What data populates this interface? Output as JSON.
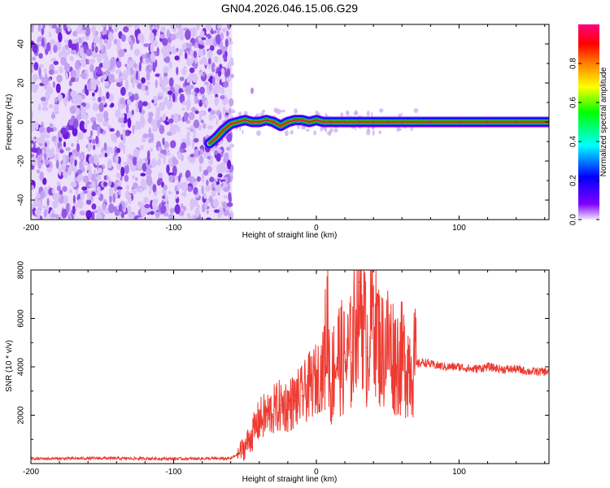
{
  "figure": {
    "title": "GN04.2026.046.15.06.G29"
  },
  "chart_data": [
    {
      "type": "heatmap",
      "title": "GN04.2026.046.15.06.G29",
      "xlabel": "Height of straight line (km)",
      "ylabel": "Frequency (Hz)",
      "xlim": [
        -200,
        163
      ],
      "ylim": [
        -50,
        50
      ],
      "xticks": [
        -200,
        -100,
        0,
        100
      ],
      "yticks": [
        -40,
        -20,
        0,
        20,
        40
      ],
      "noise_region_x": [
        -200,
        -59
      ],
      "signal_track": {
        "x": [
          -75,
          -70,
          -65,
          -60,
          -55,
          -50,
          -45,
          -40,
          -35,
          -30,
          -25,
          -20,
          -15,
          -10,
          -5,
          0,
          5,
          10,
          20,
          30,
          40,
          50,
          60,
          80,
          100,
          120,
          140,
          163
        ],
        "y": [
          -11,
          -8,
          -4,
          -1,
          0,
          1,
          0,
          0,
          1,
          0,
          -2,
          0,
          1,
          1,
          0,
          1,
          0,
          0,
          0,
          0,
          0,
          0,
          0,
          0,
          0,
          0,
          0,
          0
        ]
      },
      "colorbar": {
        "label": "Normalized spectral amplitude",
        "range": [
          0,
          1
        ],
        "ticks": [
          "0.0",
          "0.2",
          "0.4",
          "0.6",
          "0.8"
        ],
        "colormap": [
          "#f0e6ff",
          "#7f00ff",
          "#0000ff",
          "#00ffff",
          "#00ff00",
          "#ffff00",
          "#ff8000",
          "#ff0000",
          "#ff0080"
        ]
      }
    },
    {
      "type": "line",
      "xlabel": "Height of straight line (km)",
      "ylabel": "SNR (10 * v/v)",
      "xlim": [
        -200,
        163
      ],
      "ylim": [
        0,
        8000
      ],
      "xticks": [
        -200,
        -100,
        0,
        100
      ],
      "yticks": [
        2000,
        4000,
        6000,
        8000
      ],
      "color": "#ee3b32",
      "series": [
        {
          "name": "SNR",
          "x": [
            -200,
            -150,
            -100,
            -60,
            -55,
            -50,
            -45,
            -40,
            -35,
            -30,
            -25,
            -20,
            -15,
            -10,
            -5,
            0,
            5,
            8,
            10,
            12,
            15,
            20,
            25,
            30,
            35,
            40,
            45,
            50,
            55,
            60,
            65,
            70,
            75,
            80,
            90,
            100,
            110,
            120,
            130,
            140,
            150,
            163
          ],
          "values": [
            200,
            220,
            200,
            210,
            400,
            700,
            1200,
            1800,
            2000,
            2200,
            2400,
            2400,
            2600,
            2800,
            3200,
            3500,
            3900,
            6000,
            3000,
            4000,
            4500,
            4200,
            4600,
            7500,
            4800,
            6500,
            4600,
            5000,
            4400,
            4300,
            4200,
            4100,
            4200,
            4100,
            4000,
            4000,
            3900,
            4000,
            3900,
            3900,
            3800,
            3800
          ]
        }
      ]
    }
  ]
}
